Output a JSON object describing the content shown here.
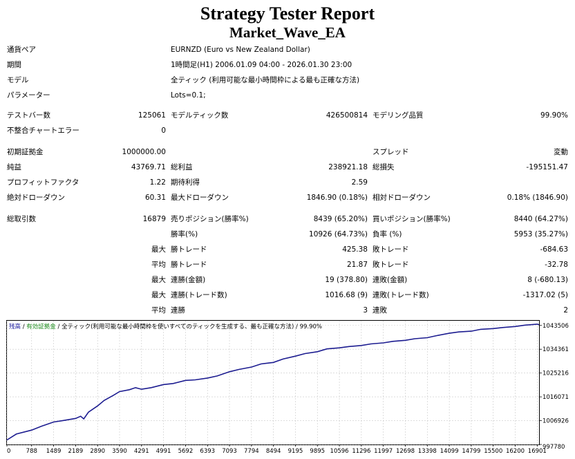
{
  "report": {
    "title": "Strategy Tester Report",
    "ea_name": "Market_Wave_EA"
  },
  "settings": {
    "symbol_label": "通貨ペア",
    "symbol_value": "EURNZD (Euro vs New Zealand Dollar)",
    "period_label": "期間",
    "period_value": "1時間足(H1) 2006.01.09 04:00 - 2026.01.30 23:00",
    "model_label": "モデル",
    "model_value": "全ティック (利用可能な最小時間枠による最も正確な方法)",
    "params_label": "パラメーター",
    "params_value": "Lots=0.1;"
  },
  "stats": {
    "bars_label": "テストバー数",
    "bars_value": "125061",
    "ticks_label": "モデルティック数",
    "ticks_value": "426500814",
    "quality_label": "モデリング品質",
    "quality_value": "99.90%",
    "mismatch_label": "不整合チャートエラー",
    "mismatch_value": "0",
    "deposit_label": "初期証拠金",
    "deposit_value": "1000000.00",
    "spread_label": "スプレッド",
    "spread_value": "変動",
    "net_label": "純益",
    "net_value": "43769.71",
    "gross_profit_label": "総利益",
    "gross_profit_value": "238921.18",
    "gross_loss_label": "総損失",
    "gross_loss_value": "-195151.47",
    "pf_label": "プロフィットファクタ",
    "pf_value": "1.22",
    "expected_label": "期待利得",
    "expected_value": "2.59",
    "abs_dd_label": "絶対ドローダウン",
    "abs_dd_value": "60.31",
    "max_dd_label": "最大ドローダウン",
    "max_dd_value": "1846.90 (0.18%)",
    "rel_dd_label": "相対ドローダウン",
    "rel_dd_value": "0.18% (1846.90)",
    "total_trades_label": "総取引数",
    "total_trades_value": "16879",
    "short_label": "売りポジション(勝率%)",
    "short_value": "8439 (65.20%)",
    "long_label": "買いポジション(勝率%)",
    "long_value": "8440 (64.27%)",
    "win_pct_label": "勝率(%)",
    "win_pct_value": "10926 (64.73%)",
    "loss_pct_label": "負率 (%)",
    "loss_pct_value": "5953 (35.27%)",
    "largest_prefix": "最大",
    "average_prefix": "平均",
    "largest_win_label": "勝トレード",
    "largest_win_value": "425.38",
    "largest_loss_label": "敗トレード",
    "largest_loss_value": "-684.63",
    "avg_win_label": "勝トレード",
    "avg_win_value": "21.87",
    "avg_loss_label": "敗トレード",
    "avg_loss_value": "-32.78",
    "max_cons_wins_money_label": "連勝(金額)",
    "max_cons_wins_money_value": "19 (378.80)",
    "max_cons_losses_money_label": "連敗(金額)",
    "max_cons_losses_money_value": "8 (-680.13)",
    "max_cons_profit_label": "連勝(トレード数)",
    "max_cons_profit_value": "1016.68 (9)",
    "max_cons_loss_label": "連敗(トレード数)",
    "max_cons_loss_value": "-1317.02 (5)",
    "avg_cons_wins_label": "連勝",
    "avg_cons_wins_value": "3",
    "avg_cons_losses_label": "連敗",
    "avg_cons_losses_value": "2"
  },
  "chart_data": {
    "type": "line",
    "legend": {
      "balance": "残高",
      "sep1": " / ",
      "equity": "有効証拠金",
      "sep2": " / ",
      "model": "全ティック(利用可能な最小時間枠を使いすべてのティックを生成する、最も正確な方法)",
      "sep3": " / ",
      "quality": "99.90%"
    },
    "x_ticks": [
      0,
      788,
      1489,
      2189,
      2890,
      3590,
      4291,
      4991,
      5692,
      6393,
      7093,
      7794,
      8494,
      9195,
      9895,
      10596,
      11296,
      11997,
      12698,
      13398,
      14099,
      14799,
      15500,
      16200,
      16901
    ],
    "y_ticks": [
      997780,
      1006926,
      1016071,
      1025216,
      1034361,
      1043506
    ],
    "xlim": [
      0,
      16960
    ],
    "ylim": [
      997780,
      1045300
    ],
    "series": [
      {
        "x": [
          0,
          300,
          788,
          1100,
          1489,
          1800,
          2189,
          2350,
          2450,
          2600,
          2890,
          3100,
          3400,
          3590,
          3900,
          4100,
          4291,
          4600,
          4991,
          5300,
          5692,
          6000,
          6393,
          6700,
          7093,
          7400,
          7794,
          8100,
          8494,
          8800,
          9195,
          9500,
          9895,
          10200,
          10596,
          10900,
          11296,
          11600,
          11997,
          12300,
          12698,
          13000,
          13398,
          13700,
          14099,
          14400,
          14799,
          15100,
          15500,
          15800,
          16200,
          16500,
          16901,
          16960
        ],
        "y": [
          999500,
          1001800,
          1003300,
          1004800,
          1006400,
          1007000,
          1007800,
          1008600,
          1007600,
          1010200,
          1012600,
          1014700,
          1016700,
          1018100,
          1018800,
          1019600,
          1019000,
          1019600,
          1020800,
          1021200,
          1022400,
          1022600,
          1023300,
          1024100,
          1025700,
          1026600,
          1027500,
          1028700,
          1029300,
          1030600,
          1031700,
          1032700,
          1033400,
          1034500,
          1034900,
          1035400,
          1035800,
          1036400,
          1036800,
          1037400,
          1037800,
          1038400,
          1038800,
          1039600,
          1040500,
          1041000,
          1041300,
          1042000,
          1042300,
          1042700,
          1043100,
          1043600,
          1044000,
          1043800
        ]
      }
    ]
  }
}
